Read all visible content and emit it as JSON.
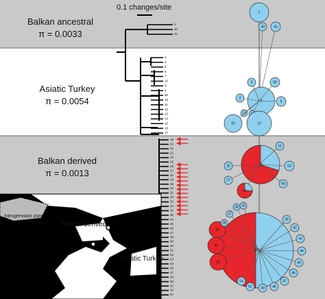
{
  "scale_bar": "0.1 changes/site",
  "groups": [
    {
      "name": "Balkan ancestral",
      "pi": "π = 0.0033"
    },
    {
      "name": "Asiatic Turkey",
      "pi": "π = 0.0054"
    },
    {
      "name": "Balkan derived",
      "pi": "π = 0.0013"
    }
  ],
  "tips": {
    "ancestral": [
      "1",
      "40",
      "41"
    ],
    "turkey": [
      "3",
      "2",
      "5",
      "6",
      "7",
      "10",
      "8",
      "9",
      "56",
      "15",
      "11",
      "13",
      "12",
      "14",
      "18",
      "16",
      "17"
    ],
    "derived": [
      "19",
      "24",
      "21",
      "22",
      "23",
      "25",
      "26",
      "27",
      "20",
      "28",
      "29",
      "30",
      "31",
      "32",
      "33",
      "34",
      "35",
      "36",
      "44",
      "45",
      "46",
      "47",
      "48",
      "49",
      "50",
      "51",
      "52",
      "53",
      "54",
      "55",
      "37",
      "38",
      "39",
      "42",
      "43",
      "57"
    ]
  },
  "network": {
    "nodes": [
      "1",
      "40",
      "41",
      "3",
      "2",
      "56",
      "6",
      "5",
      "10",
      "13",
      "16",
      "12",
      "19",
      "51",
      "53",
      "50",
      "26",
      "27",
      "34",
      "35",
      "20",
      "33",
      "32",
      "31",
      "36",
      "37",
      "38",
      "39",
      "42",
      "43",
      "44",
      "45",
      "46",
      "47",
      "48",
      "49",
      "52",
      "54"
    ]
  },
  "map": {
    "zone": "Introgression zone",
    "balkan": "Balkan derived",
    "turkey": "Asiatic Turkey"
  }
}
